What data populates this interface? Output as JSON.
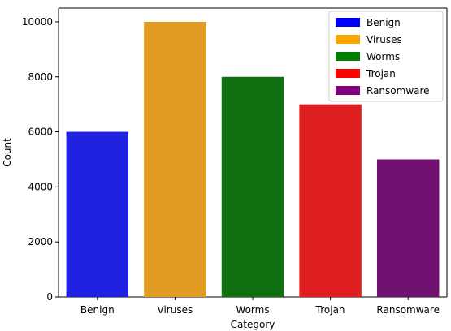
{
  "chart_data": {
    "type": "bar",
    "categories": [
      "Benign",
      "Viruses",
      "Worms",
      "Trojan",
      "Ransomware"
    ],
    "values": [
      6000,
      10000,
      8000,
      7000,
      5000
    ],
    "colors": [
      "#2020e0",
      "#e09b20",
      "#0e700e",
      "#e02020",
      "#701070"
    ],
    "legend_colors": [
      "#0000ff",
      "#ffa500",
      "#008000",
      "#ff0000",
      "#800080"
    ],
    "xlabel": "Category",
    "ylabel": "Count",
    "ylim": [
      0,
      10500
    ],
    "yticks": [
      0,
      2000,
      4000,
      6000,
      8000,
      10000
    ],
    "legend": {
      "position": "top-right",
      "entries": [
        "Benign",
        "Viruses",
        "Worms",
        "Trojan",
        "Ransomware"
      ]
    },
    "grid": false
  }
}
